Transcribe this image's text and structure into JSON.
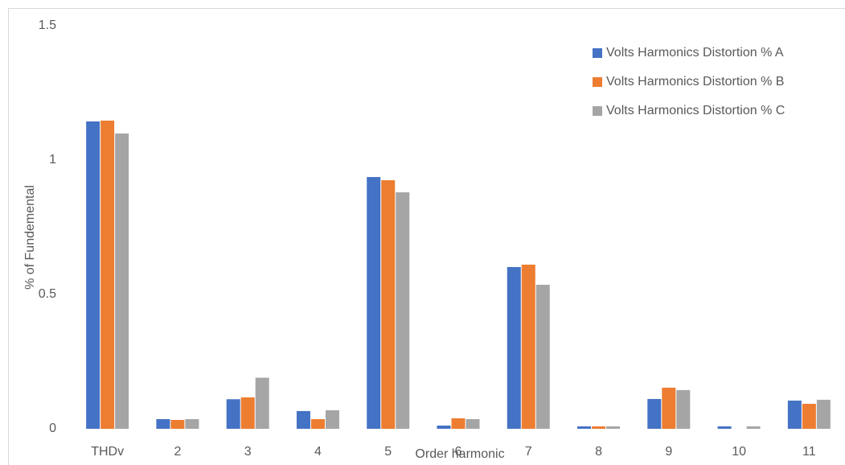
{
  "chart_data": {
    "type": "bar",
    "categories": [
      "THDv",
      "2",
      "3",
      "4",
      "5",
      "6",
      "7",
      "8",
      "9",
      "10",
      "11"
    ],
    "series": [
      {
        "name": "Volts Harmonics Distortion %  A",
        "color": "#4472c4",
        "values": [
          1.144,
          0.036,
          0.11,
          0.066,
          0.937,
          0.012,
          0.602,
          0.009,
          0.111,
          0.009,
          0.105
        ]
      },
      {
        "name": "Volts Harmonics Distortion %  B",
        "color": "#ed7d31",
        "values": [
          1.147,
          0.033,
          0.117,
          0.036,
          0.925,
          0.039,
          0.611,
          0.009,
          0.153,
          0,
          0.093
        ]
      },
      {
        "name": "Volts Harmonics Distortion %  C",
        "color": "#a5a5a5",
        "values": [
          1.099,
          0.036,
          0.19,
          0.069,
          0.88,
          0.036,
          0.536,
          0.009,
          0.144,
          0.009,
          0.108
        ]
      }
    ],
    "xlabel": "Order harmonic",
    "ylabel": "% of Fundemental",
    "ylim": [
      0,
      1.5
    ],
    "yticks": [
      0,
      0.5,
      1,
      1.5
    ],
    "grid": false,
    "legend": "top-right"
  }
}
